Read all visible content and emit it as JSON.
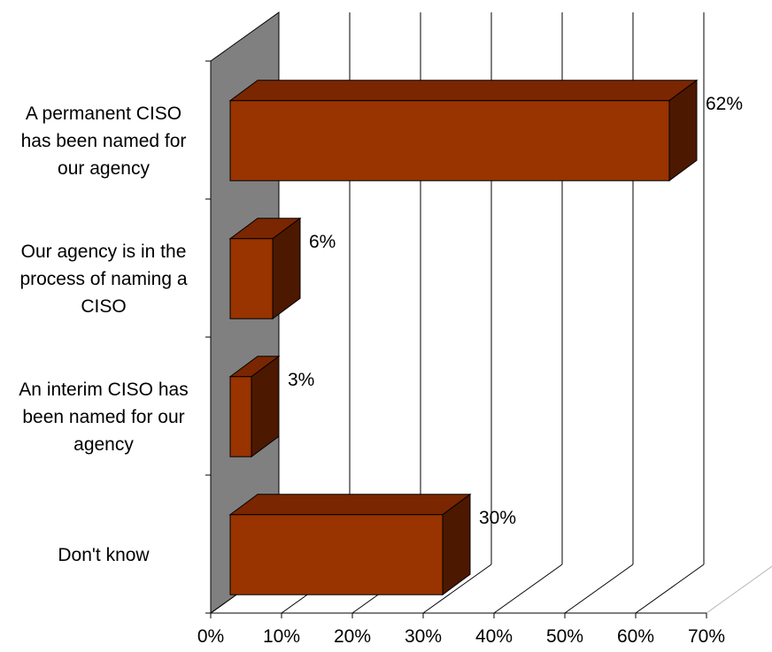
{
  "chart_data": {
    "type": "bar",
    "orientation": "horizontal",
    "style": "3d",
    "categories": [
      [
        "A permanent CISO",
        "has been named for",
        "our agency"
      ],
      [
        "Our agency is in the",
        "process of naming a",
        "CISO"
      ],
      [
        "An interim CISO has",
        "been named for our",
        "agency"
      ],
      [
        "Don't know"
      ]
    ],
    "values": [
      62,
      6,
      3,
      30
    ],
    "value_labels": [
      "62%",
      "6%",
      "3%",
      "30%"
    ],
    "x_ticks": [
      "0%",
      "10%",
      "20%",
      "30%",
      "40%",
      "50%",
      "60%",
      "70%"
    ],
    "xlim": [
      0,
      70
    ],
    "grid": true,
    "legend": false,
    "colors": {
      "bar_front": "#993300",
      "bar_top": "#7a2600",
      "bar_side": "#4d1800",
      "back_wall": "#808080",
      "gridline": "#000000",
      "floor_line": "#c0c0c0"
    }
  }
}
